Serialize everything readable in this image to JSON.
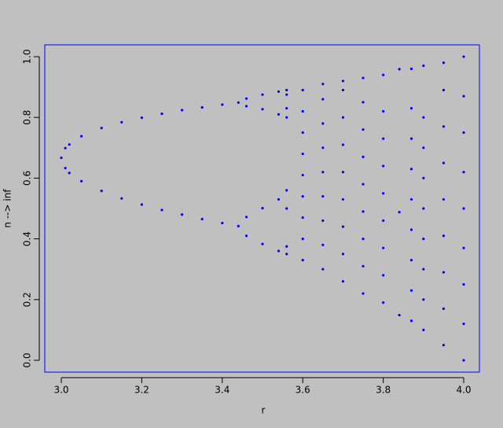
{
  "chart_data": {
    "type": "scatter",
    "xlabel": "r",
    "ylabel": "n --> inf",
    "color": "#0000ff",
    "xlim": [
      2.959,
      4.039
    ],
    "ylim": [
      -0.039,
      1.039
    ],
    "xticks": [
      {
        "value": 3,
        "label": "3.0"
      },
      3.2,
      3.4,
      3.6,
      3.8,
      {
        "value": 4,
        "label": "4.0"
      }
    ],
    "yticks": [
      {
        "value": 0,
        "label": "0.0"
      },
      0.2,
      0.4,
      0.6,
      0.8,
      {
        "value": 1,
        "label": "1.0"
      }
    ],
    "x": [
      3.0,
      3.01,
      3.01,
      3.02,
      3.02,
      3.05,
      3.05,
      3.1,
      3.1,
      3.15,
      3.15,
      3.2,
      3.2,
      3.25,
      3.25,
      3.3,
      3.3,
      3.35,
      3.35,
      3.4,
      3.4,
      3.44,
      3.44,
      3.46,
      3.46,
      3.46,
      3.46,
      3.5,
      3.5,
      3.5,
      3.5,
      3.54,
      3.54,
      3.54,
      3.54,
      3.56,
      3.56,
      3.56,
      3.56,
      3.56,
      3.56,
      3.56,
      3.56,
      3.6,
      3.6,
      3.6,
      3.6,
      3.6,
      3.6,
      3.6,
      3.6,
      3.6,
      3.65,
      3.65,
      3.65,
      3.65,
      3.65,
      3.65,
      3.65,
      3.65,
      3.65,
      3.7,
      3.7,
      3.7,
      3.7,
      3.7,
      3.7,
      3.7,
      3.7,
      3.7,
      3.75,
      3.75,
      3.75,
      3.75,
      3.75,
      3.75,
      3.75,
      3.75,
      3.75,
      3.8,
      3.8,
      3.8,
      3.8,
      3.8,
      3.8,
      3.8,
      3.8,
      3.8,
      3.84,
      3.84,
      3.84,
      3.87,
      3.87,
      3.87,
      3.87,
      3.87,
      3.87,
      3.87,
      3.87,
      3.87,
      3.9,
      3.9,
      3.9,
      3.9,
      3.9,
      3.9,
      3.9,
      3.9,
      3.9,
      3.95,
      3.95,
      3.95,
      3.95,
      3.95,
      3.95,
      3.95,
      3.95,
      3.95,
      4.0,
      4.0,
      4.0,
      4.0,
      4.0,
      4.0,
      4.0,
      4.0,
      4.0
    ],
    "y": [
      0.667,
      0.699,
      0.633,
      0.711,
      0.617,
      0.738,
      0.59,
      0.765,
      0.558,
      0.784,
      0.533,
      0.799,
      0.513,
      0.812,
      0.495,
      0.824,
      0.48,
      0.833,
      0.465,
      0.842,
      0.452,
      0.849,
      0.442,
      0.472,
      0.862,
      0.41,
      0.837,
      0.383,
      0.501,
      0.827,
      0.875,
      0.36,
      0.53,
      0.81,
      0.885,
      0.35,
      0.375,
      0.5,
      0.56,
      0.8,
      0.83,
      0.875,
      0.89,
      0.33,
      0.4,
      0.47,
      0.54,
      0.61,
      0.68,
      0.75,
      0.82,
      0.89,
      0.3,
      0.38,
      0.46,
      0.54,
      0.62,
      0.7,
      0.78,
      0.86,
      0.91,
      0.26,
      0.35,
      0.44,
      0.53,
      0.62,
      0.71,
      0.8,
      0.89,
      0.92,
      0.22,
      0.31,
      0.4,
      0.49,
      0.58,
      0.67,
      0.76,
      0.85,
      0.93,
      0.19,
      0.28,
      0.37,
      0.46,
      0.55,
      0.64,
      0.73,
      0.82,
      0.94,
      0.149,
      0.488,
      0.959,
      0.13,
      0.23,
      0.33,
      0.43,
      0.53,
      0.63,
      0.73,
      0.83,
      0.96,
      0.1,
      0.2,
      0.3,
      0.4,
      0.5,
      0.6,
      0.7,
      0.8,
      0.97,
      0.05,
      0.17,
      0.29,
      0.41,
      0.53,
      0.65,
      0.77,
      0.89,
      0.98,
      0.0,
      0.12,
      0.25,
      0.37,
      0.5,
      0.62,
      0.75,
      0.87,
      1.0
    ]
  }
}
